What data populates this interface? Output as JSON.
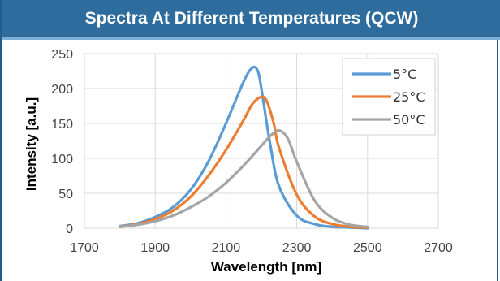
{
  "header": {
    "title": "Spectra At Different Temperatures (QCW)"
  },
  "chart_data": {
    "type": "line",
    "title": "Spectra At Different Temperatures (QCW)",
    "xlabel": "Wavelength [nm]",
    "ylabel": "Intensity [a.u.]",
    "xlim": [
      1700,
      2700
    ],
    "ylim": [
      0,
      250
    ],
    "x_ticks": [
      "1700",
      "1900",
      "2100",
      "2300",
      "2500",
      "2700"
    ],
    "y_ticks": [
      "0",
      "50",
      "100",
      "150",
      "200",
      "250"
    ],
    "grid": true,
    "legend_position": "top-right",
    "series": [
      {
        "name": "5°C",
        "color": "#5b9bd5",
        "x": [
          1800,
          1850,
          1900,
          1950,
          2000,
          2050,
          2100,
          2150,
          2175,
          2190,
          2200,
          2225,
          2250,
          2300,
          2350,
          2400,
          2450,
          2500
        ],
        "y": [
          3,
          7,
          16,
          30,
          55,
          95,
          150,
          210,
          230,
          225,
          200,
          120,
          60,
          18,
          6,
          2,
          1,
          0
        ]
      },
      {
        "name": "25°C",
        "color": "#ed7d31",
        "x": [
          1800,
          1850,
          1900,
          1950,
          2000,
          2050,
          2100,
          2150,
          2175,
          2200,
          2215,
          2235,
          2250,
          2300,
          2350,
          2400,
          2450,
          2500
        ],
        "y": [
          2,
          6,
          13,
          25,
          45,
          75,
          112,
          155,
          178,
          188,
          182,
          150,
          115,
          48,
          17,
          6,
          2,
          1
        ]
      },
      {
        "name": "50°C",
        "color": "#a5a5a5",
        "x": [
          1800,
          1850,
          1900,
          1950,
          2000,
          2050,
          2100,
          2150,
          2200,
          2225,
          2250,
          2275,
          2300,
          2350,
          2400,
          2450,
          2500
        ],
        "y": [
          2,
          5,
          10,
          18,
          30,
          45,
          65,
          90,
          118,
          132,
          140,
          128,
          95,
          40,
          15,
          5,
          2
        ]
      }
    ]
  }
}
